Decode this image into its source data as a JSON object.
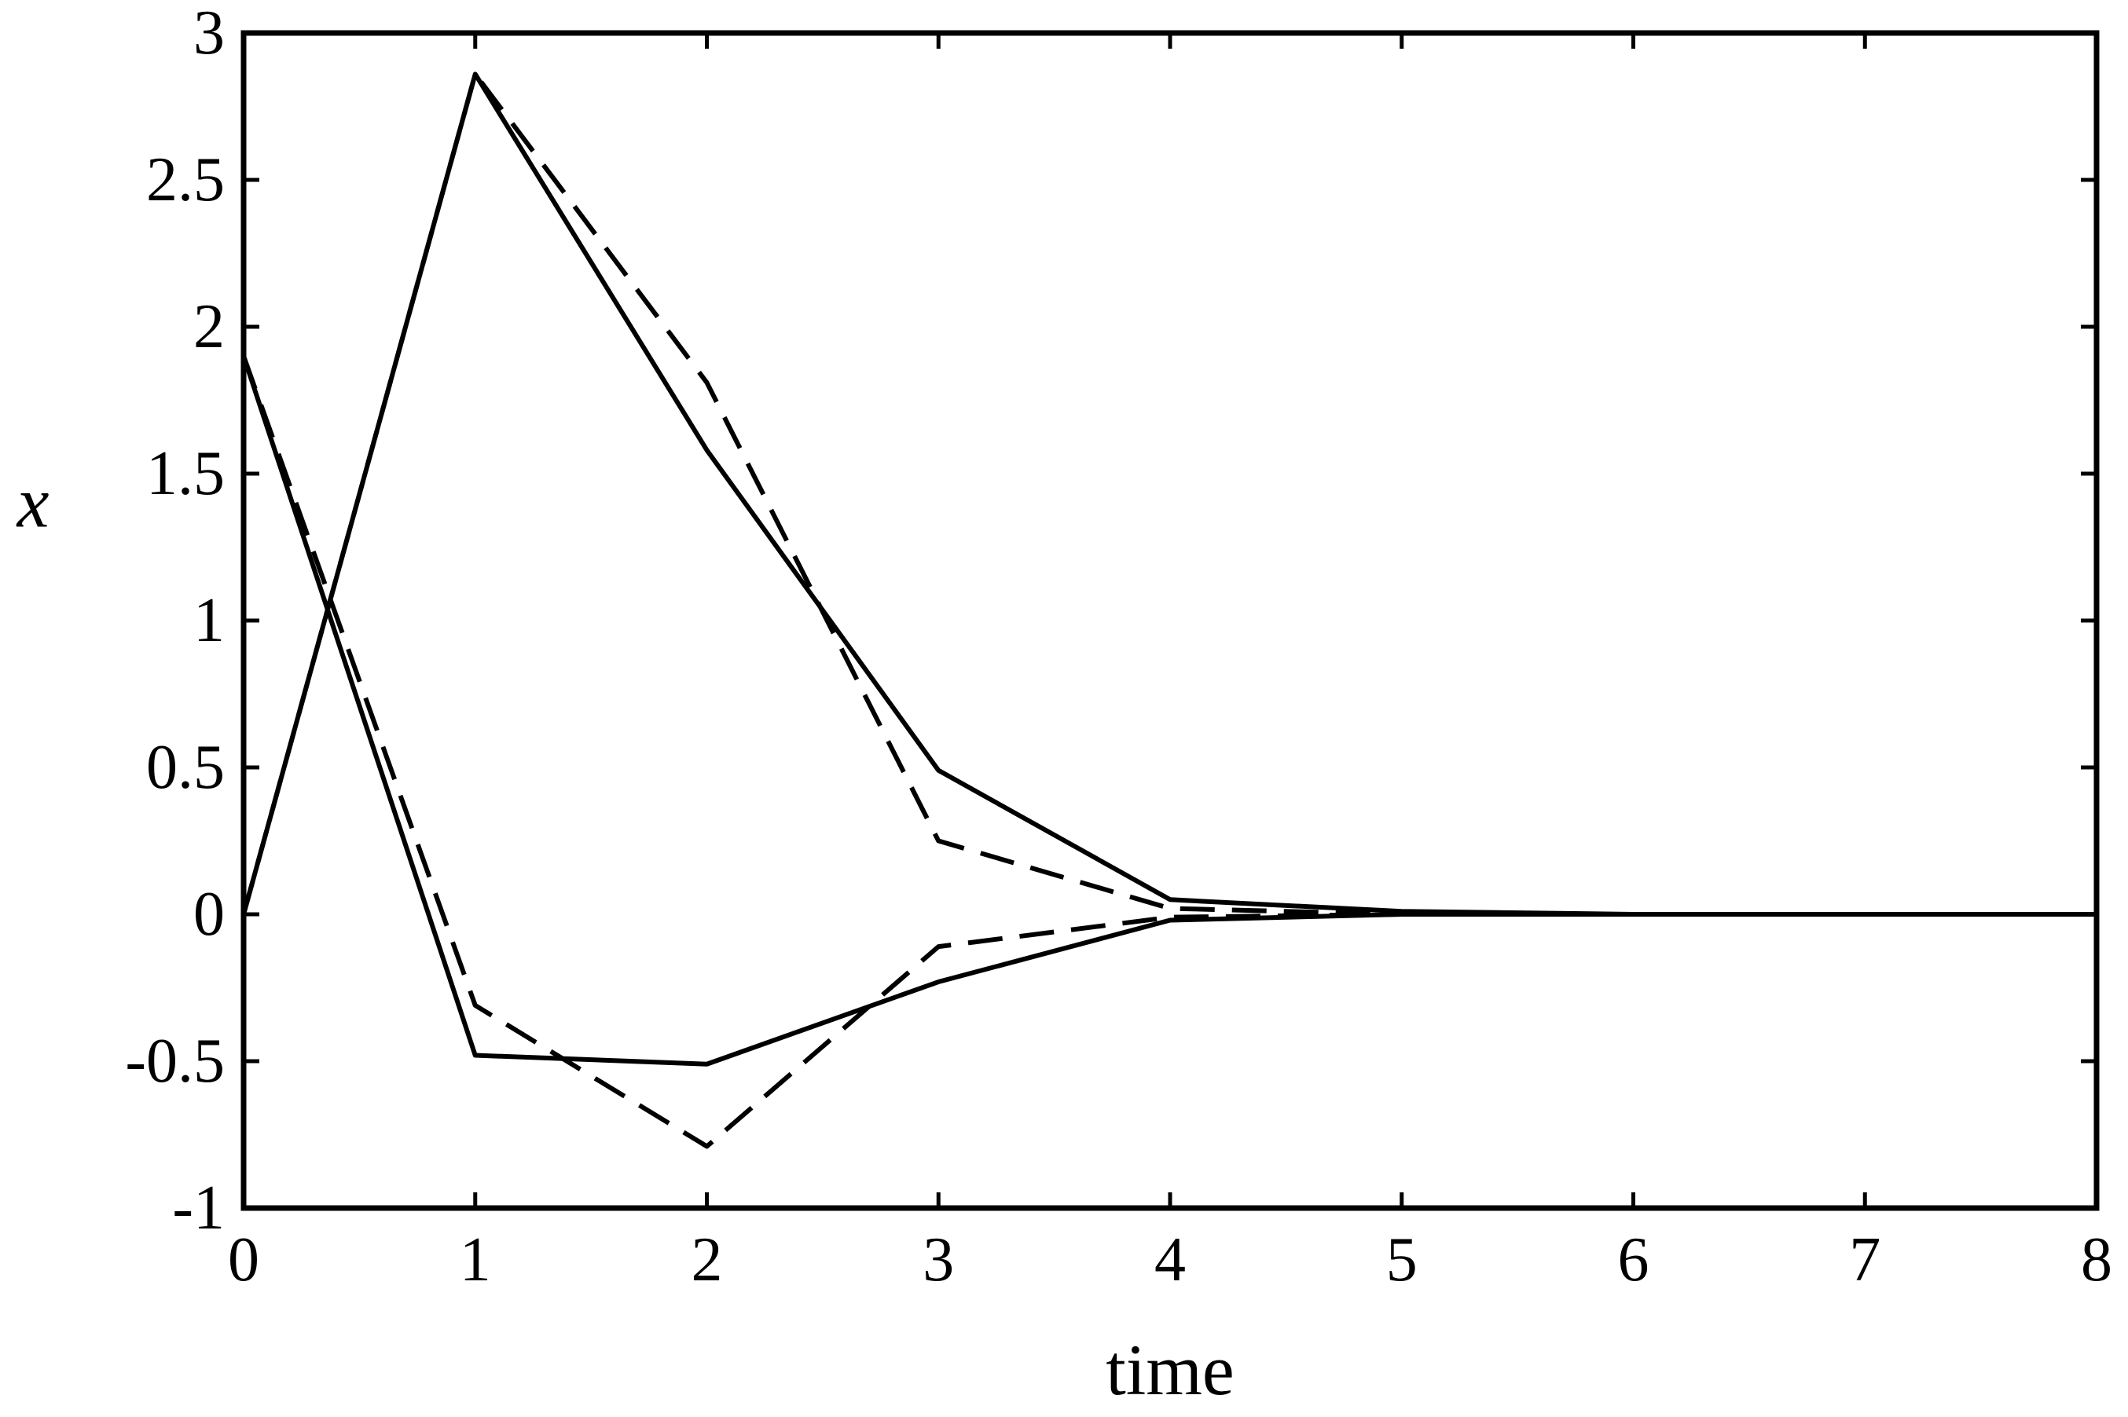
{
  "chart_data": {
    "type": "line",
    "title": "",
    "xlabel": "time",
    "ylabel": "x",
    "xlim": [
      0,
      8
    ],
    "ylim": [
      -1,
      3
    ],
    "grid": false,
    "legend": "none",
    "x_ticks": [
      "0",
      "1",
      "2",
      "3",
      "4",
      "5",
      "6",
      "7",
      "8"
    ],
    "y_ticks": [
      "-1",
      "-0.5",
      "0",
      "0.5",
      "1",
      "1.5",
      "2",
      "2.5",
      "3"
    ],
    "x": [
      0,
      1,
      2,
      3,
      4,
      5,
      6,
      7,
      8
    ],
    "series": [
      {
        "style": "solid",
        "color": "#000000",
        "values": [
          0.0,
          2.86,
          1.58,
          0.49,
          0.05,
          0.01,
          0.0,
          0.0,
          0.0
        ]
      },
      {
        "style": "solid",
        "color": "#000000",
        "values": [
          1.9,
          -0.48,
          -0.51,
          -0.23,
          -0.02,
          0.0,
          0.0,
          0.0,
          0.0
        ]
      },
      {
        "style": "dashed",
        "color": "#000000",
        "values": [
          0.0,
          2.86,
          1.81,
          0.25,
          0.02,
          0.0,
          0.0,
          0.0,
          0.0
        ]
      },
      {
        "style": "dashed",
        "color": "#000000",
        "values": [
          1.9,
          -0.31,
          -0.79,
          -0.11,
          -0.01,
          0.0,
          0.0,
          0.0,
          0.0
        ]
      }
    ]
  }
}
